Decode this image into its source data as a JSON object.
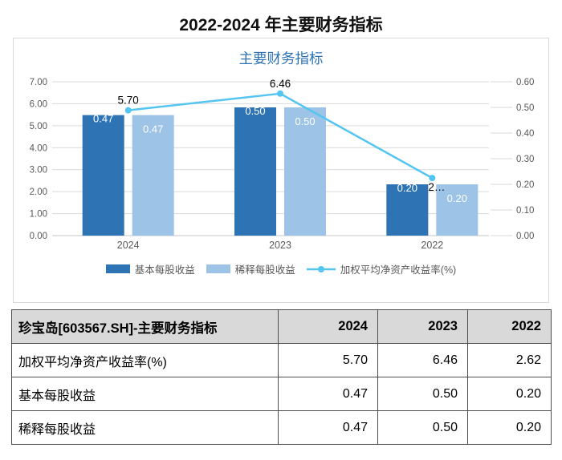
{
  "page_title": "2022-2024 年主要财务指标",
  "chart": {
    "title": "主要财务指标"
  },
  "chart_data": {
    "type": "bar+line",
    "title": "主要财务指标",
    "categories": [
      "2024",
      "2023",
      "2022"
    ],
    "series": [
      {
        "name": "基本每股收益",
        "type": "bar",
        "axis": "right",
        "values": [
          0.47,
          0.5,
          0.2
        ],
        "labels": [
          "0.47",
          "0.50",
          "0.20"
        ],
        "color": "#2E74B5"
      },
      {
        "name": "稀释每股收益",
        "type": "bar",
        "axis": "right",
        "values": [
          0.47,
          0.5,
          0.2
        ],
        "labels": [
          "0.47",
          "0.50",
          "0.20"
        ],
        "color": "#9DC3E6"
      },
      {
        "name": "加权平均净资产收益率(%)",
        "type": "line",
        "axis": "left",
        "values": [
          5.7,
          6.46,
          2.62
        ],
        "labels": [
          "5.70",
          "6.46",
          "2…"
        ],
        "color": "#54C5F0"
      }
    ],
    "left_axis": {
      "min": 0,
      "max": 7,
      "step": 1,
      "ticks": [
        "7.00",
        "6.00",
        "5.00",
        "4.00",
        "3.00",
        "2.00",
        "1.00",
        "0.00"
      ]
    },
    "right_axis": {
      "min": 0,
      "max": 0.6,
      "step": 0.1,
      "ticks": [
        "0.60",
        "0.50",
        "0.40",
        "0.30",
        "0.20",
        "0.10",
        "0.00"
      ]
    },
    "grid": true,
    "legend_position": "bottom",
    "colors": {
      "grid": "#d9d9d9",
      "baseline": "#c6c6c6",
      "axis_text": "#595959",
      "bar_label": "#ffffff",
      "line_label": "#000000",
      "chart_title": "#2E74B5"
    }
  },
  "table": {
    "header": [
      "珍宝岛[603567.SH]-主要财务指标",
      "2024",
      "2023",
      "2022"
    ],
    "rows": [
      [
        "加权平均净资产收益率(%)",
        "5.70",
        "6.46",
        "2.62"
      ],
      [
        "基本每股收益",
        "0.47",
        "0.50",
        "0.20"
      ],
      [
        "稀释每股收益",
        "0.47",
        "0.50",
        "0.20"
      ]
    ]
  }
}
